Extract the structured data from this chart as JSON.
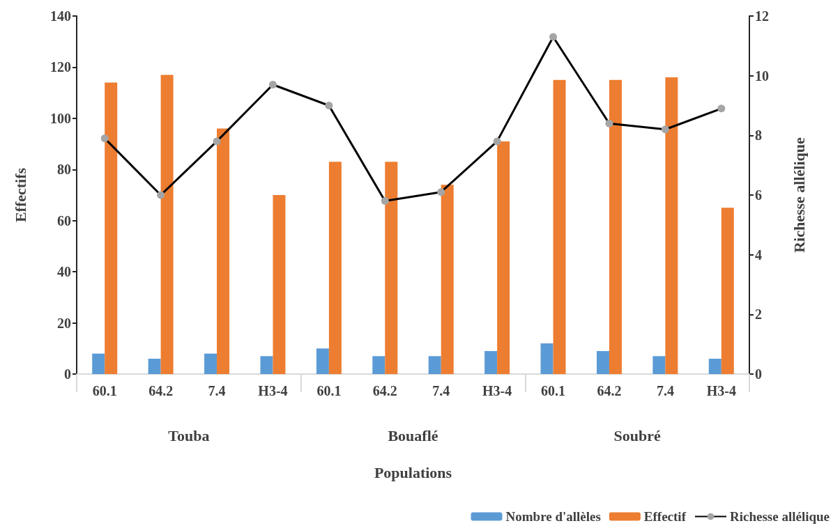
{
  "chart_data": {
    "type": "bar",
    "xlabel": "Populations",
    "ylabel": "Effectifs",
    "y2label": "Richesse allélique",
    "categories": [
      "60.1",
      "64.2",
      "7.4",
      "H3-4",
      "60.1",
      "64.2",
      "7.4",
      "H3-4",
      "60.1",
      "64.2",
      "7.4",
      "H3-4"
    ],
    "annotations": [
      "Touba",
      "Bouaflé",
      "Soubré"
    ],
    "series": [
      {
        "name": "Nombre d'allèles",
        "color": "#5b9bd5",
        "values": [
          8,
          6,
          8,
          7,
          10,
          7,
          7,
          9,
          12,
          9,
          7,
          6
        ]
      },
      {
        "name": "Effectif",
        "color": "#ed7d31",
        "values": [
          114,
          117,
          96,
          70,
          83,
          83,
          74,
          91,
          115,
          115,
          116,
          65
        ]
      },
      {
        "name": "Richesse allélique",
        "type": "line",
        "axis": "y2",
        "color": "#000000",
        "marker": "circle",
        "values": [
          7.9,
          6.0,
          7.8,
          9.7,
          9.0,
          5.8,
          6.1,
          7.8,
          11.3,
          8.4,
          8.2,
          8.9
        ]
      }
    ],
    "ylim": [
      0,
      140
    ],
    "yticks": [
      0,
      20,
      40,
      60,
      80,
      100,
      120,
      140
    ],
    "y2lim": [
      0,
      12
    ],
    "y2ticks": [
      0,
      2,
      4,
      6,
      8,
      10,
      12
    ],
    "grid": false,
    "legend": "bottom right"
  }
}
